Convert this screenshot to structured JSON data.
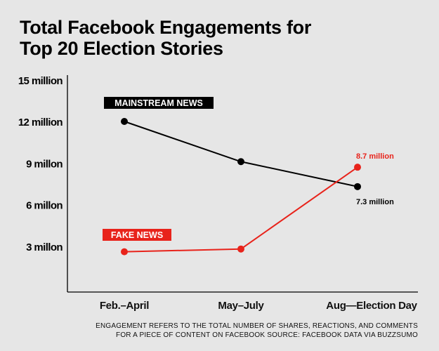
{
  "title_lines": [
    "Total Facebook Engagements for",
    "Top 20 Election Stories"
  ],
  "footnote_lines": [
    "ENGAGEMENT REFERS TO THE TOTAL NUMBER OF SHARES, REACTIONS, AND COMMENTS",
    "FOR A PIECE OF CONTENT ON FACEBOOK SOURCE: FACEBOOK DATA VIA BUZZSUMO"
  ],
  "chart_data": {
    "type": "line",
    "title": "Total Facebook Engagements for Top 20 Election Stories",
    "categories": [
      "Feb.–April",
      "May–July",
      "Aug—Election Day"
    ],
    "ylim": [
      0,
      15
    ],
    "yticks": [
      3,
      6,
      9,
      12,
      15
    ],
    "ytick_labels": [
      "3 millon",
      "6 millon",
      "9 millon",
      "12 million",
      "15 million"
    ],
    "grid": false,
    "series": [
      {
        "name": "MAINSTREAM NEWS",
        "color": "#000000",
        "values": [
          12,
          9.1,
          7.3
        ],
        "end_label": "7.3 million"
      },
      {
        "name": "FAKE NEWS",
        "color": "#e8231b",
        "values": [
          2.6,
          2.8,
          8.7
        ],
        "end_label": "8.7 million"
      }
    ]
  }
}
